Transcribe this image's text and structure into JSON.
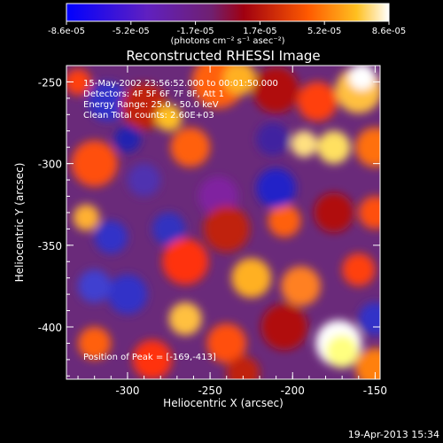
{
  "colorbar": {
    "ticks": [
      "-8.6e-05",
      "-5.2e-05",
      "-1.7e-05",
      "1.7e-05",
      "5.2e-05",
      "8.6e-05"
    ],
    "unit_label": "(photons cm⁻² s⁻¹ asec⁻²)",
    "min": -8.6e-05,
    "max": 8.6e-05
  },
  "chart_data": {
    "type": "heatmap",
    "title": "Reconstructed RHESSI Image",
    "xlabel": "Heliocentric X (arcsec)",
    "ylabel": "Heliocentric Y (arcsec)",
    "xlim": [
      -337,
      -147
    ],
    "ylim": [
      -432,
      -240
    ],
    "xticks": [
      -300,
      -250,
      -200,
      -150
    ],
    "yticks": [
      -250,
      -300,
      -350,
      -400
    ],
    "info_lines": [
      "15-May-2002 23:56:52.000 to 00:01:50.000",
      "Detectors: 4F 5F 6F 7F 8F, Att 1",
      "Energy Range: 25.0 - 50.0 keV",
      "Clean     Total counts: 2.60E+03"
    ],
    "peak_label": "Position of Peak = [-169,-413]",
    "peak_position": [
      -169,
      -413
    ]
  },
  "timestamp": "19-Apr-2013 15:34"
}
